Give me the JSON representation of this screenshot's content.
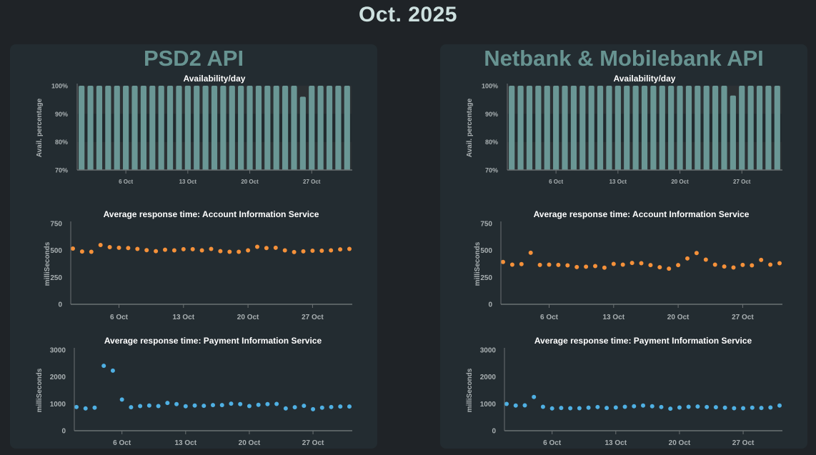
{
  "page": {
    "title": "Oct. 2025"
  },
  "colors": {
    "bar": "#6a9795",
    "ais_dot": "#f5913a",
    "pis_dot": "#4fb0e3",
    "panel_title": "#679391"
  },
  "panels": [
    {
      "title": "PSD2 API"
    },
    {
      "title": "Netbank & Mobilebank API"
    }
  ],
  "chart_data": [
    {
      "panel": 0,
      "kind": "availability",
      "type": "bar",
      "title": "Availability/day",
      "ylabel": "Avail. percentage",
      "xlabel": "",
      "ylim": [
        70,
        100
      ],
      "yticks": [
        "70%",
        "80%",
        "90%",
        "100%"
      ],
      "ytick_values": [
        70,
        80,
        90,
        100
      ],
      "xticks": [
        "6 Oct",
        "13 Oct",
        "20 Oct",
        "27 Oct"
      ],
      "xtick_days": [
        6,
        13,
        20,
        27
      ],
      "x": [
        1,
        2,
        3,
        4,
        5,
        6,
        7,
        8,
        9,
        10,
        11,
        12,
        13,
        14,
        15,
        16,
        17,
        18,
        19,
        20,
        21,
        22,
        23,
        24,
        25,
        26,
        27,
        28,
        29,
        30,
        31
      ],
      "values": [
        100,
        100,
        100,
        100,
        100,
        100,
        100,
        100,
        100,
        100,
        100,
        100,
        100,
        100,
        100,
        100,
        100,
        100,
        100,
        100,
        100,
        100,
        100,
        100,
        100,
        96.1,
        100,
        100,
        100,
        100,
        100
      ]
    },
    {
      "panel": 0,
      "kind": "ais",
      "type": "scatter",
      "title": "Average response time: Account Information Service",
      "ylabel": "milliSeconds",
      "xlabel": "",
      "ylim": [
        0,
        750
      ],
      "yticks": [
        "0",
        "250",
        "500",
        "750"
      ],
      "ytick_values": [
        0,
        250,
        500,
        750
      ],
      "xticks": [
        "6 Oct",
        "13 Oct",
        "20 Oct",
        "27 Oct"
      ],
      "xtick_days": [
        6,
        13,
        20,
        27
      ],
      "x": [
        1,
        2,
        3,
        4,
        5,
        6,
        7,
        8,
        9,
        10,
        11,
        12,
        13,
        14,
        15,
        16,
        17,
        18,
        19,
        20,
        21,
        22,
        23,
        24,
        25,
        26,
        27,
        28,
        29,
        30,
        31
      ],
      "values": [
        518,
        490,
        488,
        551,
        531,
        525,
        523,
        514,
        503,
        494,
        507,
        501,
        512,
        512,
        501,
        514,
        494,
        488,
        488,
        501,
        534,
        523,
        525,
        501,
        485,
        492,
        498,
        498,
        501,
        510,
        514
      ]
    },
    {
      "panel": 0,
      "kind": "pis",
      "type": "scatter",
      "title": "Average response time: Payment Information Service",
      "ylabel": "milliSeconds",
      "xlabel": "",
      "ylim": [
        0,
        3000
      ],
      "yticks": [
        "0",
        "1000",
        "2000",
        "3000"
      ],
      "ytick_values": [
        0,
        1000,
        2000,
        3000
      ],
      "xticks": [
        "6 Oct",
        "13 Oct",
        "20 Oct",
        "27 Oct"
      ],
      "xtick_days": [
        6,
        13,
        20,
        27
      ],
      "x": [
        1,
        2,
        3,
        4,
        5,
        6,
        7,
        8,
        9,
        10,
        11,
        12,
        13,
        14,
        15,
        16,
        17,
        18,
        19,
        20,
        21,
        22,
        23,
        24,
        25,
        26,
        27,
        28,
        29,
        30,
        31
      ],
      "values": [
        881,
        828,
        855,
        2412,
        2234,
        1157,
        872,
        917,
        935,
        917,
        1033,
        988,
        908,
        935,
        926,
        953,
        953,
        1006,
        988,
        917,
        961,
        988,
        997,
        828,
        872,
        926,
        801,
        855,
        881,
        899,
        899
      ]
    },
    {
      "panel": 1,
      "kind": "availability",
      "type": "bar",
      "title": "Availability/day",
      "ylabel": "Avail. percentage",
      "xlabel": "",
      "ylim": [
        70,
        100
      ],
      "yticks": [
        "70%",
        "80%",
        "90%",
        "100%"
      ],
      "ytick_values": [
        70,
        80,
        90,
        100
      ],
      "xticks": [
        "6 Oct",
        "13 Oct",
        "20 Oct",
        "27 Oct"
      ],
      "xtick_days": [
        6,
        13,
        20,
        27
      ],
      "x": [
        1,
        2,
        3,
        4,
        5,
        6,
        7,
        8,
        9,
        10,
        11,
        12,
        13,
        14,
        15,
        16,
        17,
        18,
        19,
        20,
        21,
        22,
        23,
        24,
        25,
        26,
        27,
        28,
        29,
        30,
        31
      ],
      "values": [
        100,
        100,
        100,
        100,
        100,
        100,
        100,
        100,
        100,
        100,
        100,
        100,
        100,
        100,
        100,
        100,
        100,
        100,
        100,
        100,
        100,
        100,
        100,
        100,
        100,
        96.5,
        100,
        100,
        100,
        100,
        100
      ]
    },
    {
      "panel": 1,
      "kind": "ais",
      "type": "scatter",
      "title": "Average response time: Account Information Service",
      "ylabel": "milliSeconds",
      "xlabel": "",
      "ylim": [
        0,
        750
      ],
      "yticks": [
        "0",
        "250",
        "500",
        "750"
      ],
      "ytick_values": [
        0,
        250,
        500,
        750
      ],
      "xticks": [
        "6 Oct",
        "13 Oct",
        "20 Oct",
        "27 Oct"
      ],
      "xtick_days": [
        6,
        13,
        20,
        27
      ],
      "x": [
        1,
        2,
        3,
        4,
        5,
        6,
        7,
        8,
        9,
        10,
        11,
        12,
        13,
        14,
        15,
        16,
        17,
        18,
        19,
        20,
        21,
        22,
        23,
        24,
        25,
        26,
        27,
        28,
        29,
        30,
        31
      ],
      "values": [
        393,
        368,
        373,
        479,
        366,
        368,
        366,
        362,
        346,
        349,
        355,
        340,
        375,
        368,
        384,
        382,
        364,
        344,
        331,
        364,
        426,
        476,
        415,
        368,
        351,
        342,
        366,
        362,
        412,
        368,
        382
      ]
    },
    {
      "panel": 1,
      "kind": "pis",
      "type": "scatter",
      "title": "Average response time: Payment Information Service",
      "ylabel": "milliSeconds",
      "xlabel": "",
      "ylim": [
        0,
        3000
      ],
      "yticks": [
        "0",
        "1000",
        "2000",
        "3000"
      ],
      "ytick_values": [
        0,
        1000,
        2000,
        3000
      ],
      "xticks": [
        "6 Oct",
        "13 Oct",
        "20 Oct",
        "27 Oct"
      ],
      "xtick_days": [
        6,
        13,
        20,
        27
      ],
      "x": [
        1,
        2,
        3,
        4,
        5,
        6,
        7,
        8,
        9,
        10,
        11,
        12,
        13,
        14,
        15,
        16,
        17,
        18,
        19,
        20,
        21,
        22,
        23,
        24,
        25,
        26,
        27,
        28,
        29,
        30,
        31
      ],
      "values": [
        997,
        935,
        944,
        1255,
        890,
        828,
        846,
        837,
        837,
        855,
        881,
        846,
        863,
        890,
        908,
        935,
        908,
        881,
        819,
        863,
        890,
        899,
        881,
        872,
        855,
        837,
        837,
        855,
        846,
        863,
        935
      ]
    }
  ]
}
